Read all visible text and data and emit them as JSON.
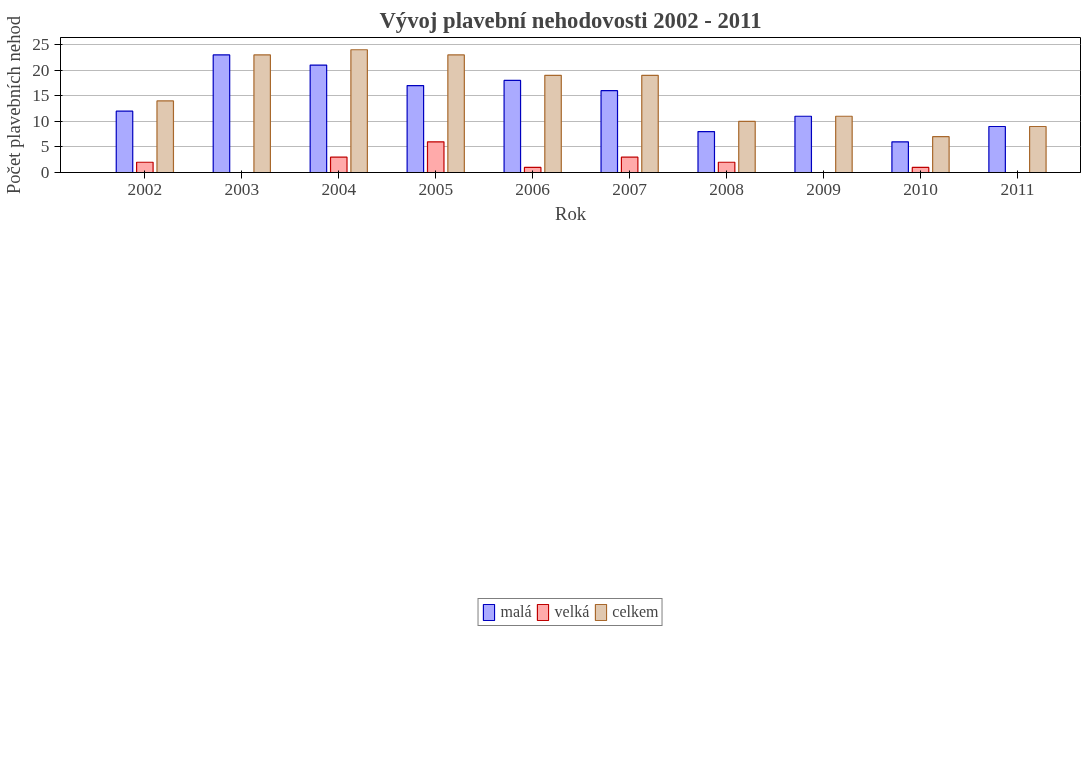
{
  "chart_data": {
    "type": "bar",
    "title": "Vývoj plavební nehodovosti 2002 - 2011",
    "xlabel": "Rok",
    "ylabel": "Počet plavebních nehod",
    "categories": [
      "2002",
      "2003",
      "2004",
      "2005",
      "2006",
      "2007",
      "2008",
      "2009",
      "2010",
      "2011"
    ],
    "series": [
      {
        "name": "malá",
        "color": "#aaaaff",
        "values": [
          12,
          23,
          21,
          17,
          18,
          16,
          8,
          11,
          6,
          9
        ]
      },
      {
        "name": "velká",
        "color": "#ffaaaa",
        "values": [
          2,
          0,
          3,
          6,
          1,
          3,
          2,
          0,
          1,
          0
        ]
      },
      {
        "name": "celkem",
        "color": "#e0c8b0",
        "values": [
          14,
          23,
          24,
          23,
          19,
          19,
          10,
          11,
          7,
          9
        ]
      }
    ],
    "ylim": [
      0,
      26.4
    ],
    "yticks": [
      0,
      5,
      10,
      15,
      20,
      25
    ],
    "grid": "y",
    "legend": "bottom"
  }
}
